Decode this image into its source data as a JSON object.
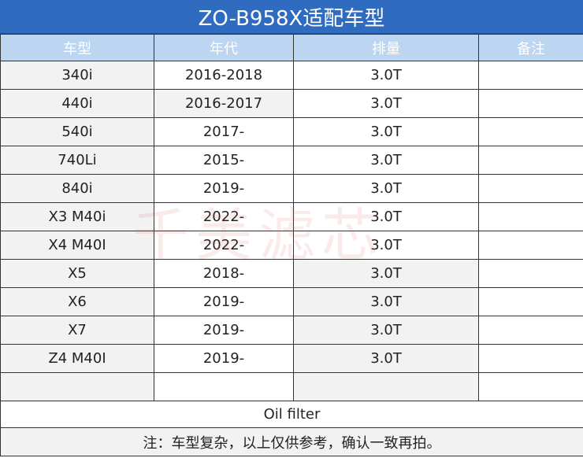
{
  "title": "ZO-B958X适配车型",
  "headers": [
    "车型",
    "年代",
    "排量",
    "备注"
  ],
  "rows": [
    {
      "model": "340i",
      "years": "2016-2018",
      "displacement": "3.0T",
      "note": ""
    },
    {
      "model": "440i",
      "years": "2016-2017",
      "displacement": "3.0T",
      "note": ""
    },
    {
      "model": "540i",
      "years": "2017-",
      "displacement": "3.0T",
      "note": ""
    },
    {
      "model": "740Li",
      "years": "2015-",
      "displacement": "3.0T",
      "note": ""
    },
    {
      "model": "840i",
      "years": "2019-",
      "displacement": "3.0T",
      "note": ""
    },
    {
      "model": "X3 M40i",
      "years": "2022-",
      "displacement": "3.0T",
      "note": ""
    },
    {
      "model": "X4 M40I",
      "years": "2022-",
      "displacement": "3.0T",
      "note": ""
    },
    {
      "model": "X5",
      "years": "2018-",
      "displacement": "3.0T",
      "note": ""
    },
    {
      "model": "X6",
      "years": "2019-",
      "displacement": "3.0T",
      "note": ""
    },
    {
      "model": "X7",
      "years": "2019-",
      "displacement": "3.0T",
      "note": ""
    },
    {
      "model": "Z4 M40I",
      "years": "2019-",
      "displacement": "3.0T",
      "note": ""
    },
    {
      "model": "",
      "years": "",
      "displacement": "",
      "note": ""
    }
  ],
  "product_type": "Oil filter",
  "footnote": "注：车型复杂，以上仅供参考，确认一致再拍。",
  "watermark": "千美滤芯",
  "colors": {
    "title_bg": "#2f6cc0",
    "header_bg": "#bcd5f0",
    "shade": "#f2f2f2"
  }
}
